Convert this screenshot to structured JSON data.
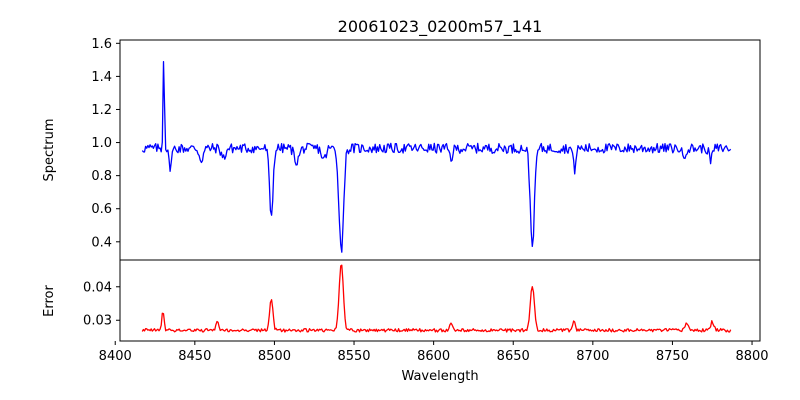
{
  "chart_data": {
    "type": "line",
    "title": "20061023_0200m57_141",
    "xlabel": "Wavelength",
    "x_range": [
      8417,
      8787
    ],
    "xlim": [
      8403,
      8805
    ],
    "xticks": [
      "8400",
      "8450",
      "8500",
      "8550",
      "8600",
      "8650",
      "8700",
      "8750",
      "8800"
    ],
    "grid": false,
    "panels": [
      {
        "ylabel": "Spectrum",
        "ylim": [
          0.29,
          1.62
        ],
        "yticks": [
          "0.4",
          "0.6",
          "0.8",
          "1.0",
          "1.2",
          "1.4",
          "1.6"
        ],
        "series": [
          {
            "color": "#0000ff",
            "baseline": 0.965,
            "noise": 0.03,
            "features": [
              {
                "x": 8430.5,
                "depth": -0.6,
                "width": 0.4
              },
              {
                "x": 8434.5,
                "depth": 0.11,
                "width": 0.9
              },
              {
                "x": 8454.0,
                "depth": 0.07,
                "width": 1.2
              },
              {
                "x": 8468.0,
                "depth": 0.06,
                "width": 1.2
              },
              {
                "x": 8498.0,
                "depth": 0.41,
                "width": 1.1
              },
              {
                "x": 8514.0,
                "depth": 0.08,
                "width": 1.5
              },
              {
                "x": 8531.0,
                "depth": 0.07,
                "width": 1.3
              },
              {
                "x": 8542.0,
                "depth": 0.62,
                "width": 1.4
              },
              {
                "x": 8611.0,
                "depth": 0.06,
                "width": 1.0
              },
              {
                "x": 8662.0,
                "depth": 0.58,
                "width": 1.3
              },
              {
                "x": 8688.5,
                "depth": 0.13,
                "width": 0.8
              },
              {
                "x": 8757.0,
                "depth": 0.05,
                "width": 1.0
              },
              {
                "x": 8774.0,
                "depth": 0.07,
                "width": 1.0
              }
            ]
          }
        ]
      },
      {
        "ylabel": "Error",
        "ylim": [
          0.0238,
          0.048
        ],
        "yticks": [
          "0.03",
          "0.04"
        ],
        "series": [
          {
            "color": "#ff0000",
            "baseline": 0.027,
            "noise": 0.0005,
            "features": [
              {
                "x": 8430.0,
                "depth": -0.0055,
                "width": 0.7
              },
              {
                "x": 8464.0,
                "depth": -0.003,
                "width": 0.8
              },
              {
                "x": 8498.0,
                "depth": -0.0095,
                "width": 1.0
              },
              {
                "x": 8542.0,
                "depth": -0.02,
                "width": 1.3
              },
              {
                "x": 8611.0,
                "depth": -0.002,
                "width": 0.8
              },
              {
                "x": 8662.0,
                "depth": -0.0135,
                "width": 1.2
              },
              {
                "x": 8688.0,
                "depth": -0.0025,
                "width": 0.9
              },
              {
                "x": 8759.0,
                "depth": -0.0022,
                "width": 1.0
              },
              {
                "x": 8775.0,
                "depth": -0.0025,
                "width": 1.0
              }
            ]
          }
        ]
      }
    ]
  }
}
